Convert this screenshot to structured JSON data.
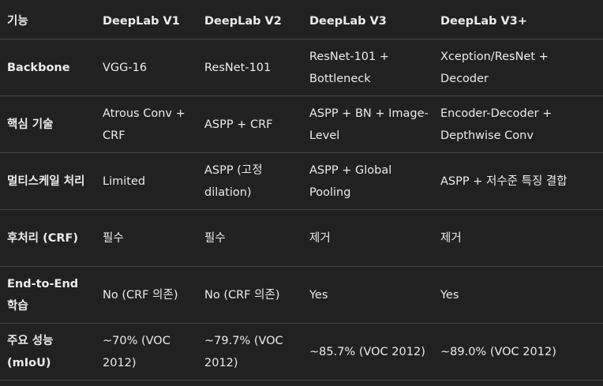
{
  "table": {
    "headers": [
      "기능",
      "DeepLab V1",
      "DeepLab V2",
      "DeepLab V3",
      "DeepLab V3+"
    ],
    "rows": [
      {
        "feature": "Backbone",
        "cells": [
          "VGG-16",
          "ResNet-101",
          "ResNet-101 + Bottleneck",
          "Xception/ResNet + Decoder"
        ]
      },
      {
        "feature": "핵심 기술",
        "cells": [
          "Atrous Conv + CRF",
          "ASPP + CRF",
          "ASPP + BN + Image-Level",
          "Encoder-Decoder + Depthwise Conv"
        ]
      },
      {
        "feature": "멀티스케일 처리",
        "cells": [
          "Limited",
          "ASPP (고정 dilation)",
          "ASPP + Global Pooling",
          "ASPP + 저수준 특징 결합"
        ]
      },
      {
        "feature": "후처리 (CRF)",
        "cells": [
          "필수",
          "필수",
          "제거",
          "제거"
        ]
      },
      {
        "feature": "End-to-End 학습",
        "cells": [
          "No (CRF 의존)",
          "No (CRF 의존)",
          "Yes",
          "Yes"
        ]
      },
      {
        "feature": "주요 성능 (mIoU)",
        "cells": [
          "~70% (VOC 2012)",
          "~79.7% (VOC 2012)",
          "~85.7% (VOC 2012)",
          "~89.0% (VOC 2012)"
        ]
      }
    ]
  }
}
